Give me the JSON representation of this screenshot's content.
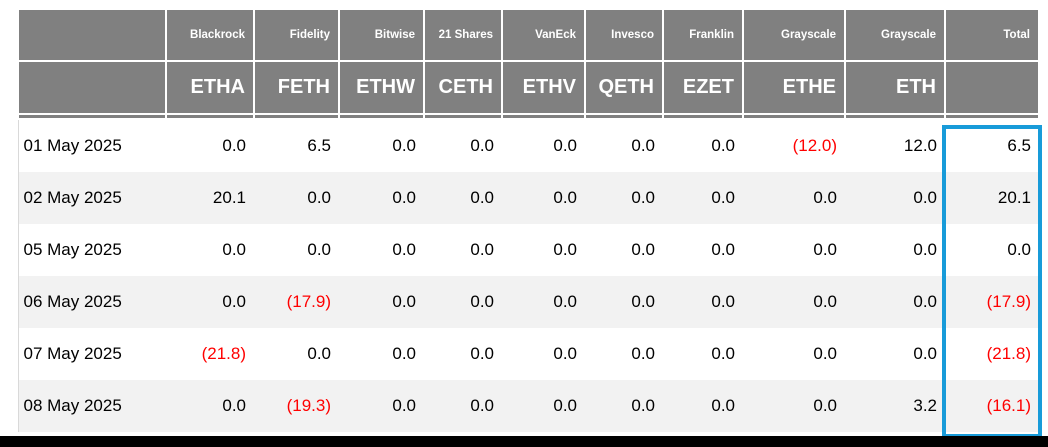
{
  "chart_data": {
    "type": "table",
    "issuer_headers": [
      "Blackrock",
      "Fidelity",
      "Bitwise",
      "21 Shares",
      "VanEck",
      "Invesco",
      "Franklin",
      "Grayscale",
      "Grayscale"
    ],
    "ticker_headers": [
      "ETHA",
      "FETH",
      "ETHW",
      "CETH",
      "ETHV",
      "QETH",
      "EZET",
      "ETHE",
      "ETH"
    ],
    "total_label": "Total",
    "date_column_header": "",
    "negative_format": "parentheses",
    "rows": [
      {
        "date": "01 May 2025",
        "values": [
          "0.0",
          "6.5",
          "0.0",
          "0.0",
          "0.0",
          "0.0",
          "0.0",
          "(12.0)",
          "12.0"
        ],
        "total": "6.5"
      },
      {
        "date": "02 May 2025",
        "values": [
          "20.1",
          "0.0",
          "0.0",
          "0.0",
          "0.0",
          "0.0",
          "0.0",
          "0.0",
          "0.0"
        ],
        "total": "20.1"
      },
      {
        "date": "05 May 2025",
        "values": [
          "0.0",
          "0.0",
          "0.0",
          "0.0",
          "0.0",
          "0.0",
          "0.0",
          "0.0",
          "0.0"
        ],
        "total": "0.0"
      },
      {
        "date": "06 May 2025",
        "values": [
          "0.0",
          "(17.9)",
          "0.0",
          "0.0",
          "0.0",
          "0.0",
          "0.0",
          "0.0",
          "0.0"
        ],
        "total": "(17.9)"
      },
      {
        "date": "07 May 2025",
        "values": [
          "(21.8)",
          "0.0",
          "0.0",
          "0.0",
          "0.0",
          "0.0",
          "0.0",
          "0.0",
          "0.0"
        ],
        "total": "(21.8)"
      },
      {
        "date": "08 May 2025",
        "values": [
          "0.0",
          "(19.3)",
          "0.0",
          "0.0",
          "0.0",
          "0.0",
          "0.0",
          "0.0",
          "3.2"
        ],
        "total": "(16.1)"
      }
    ],
    "colors": {
      "header_bg": "#808080",
      "header_text": "#ffffff",
      "negative_value": "#ff0000",
      "alt_row_bg": "#f2f2f2",
      "highlight_box": "#189bd9",
      "bottom_bar": "#000000"
    }
  }
}
